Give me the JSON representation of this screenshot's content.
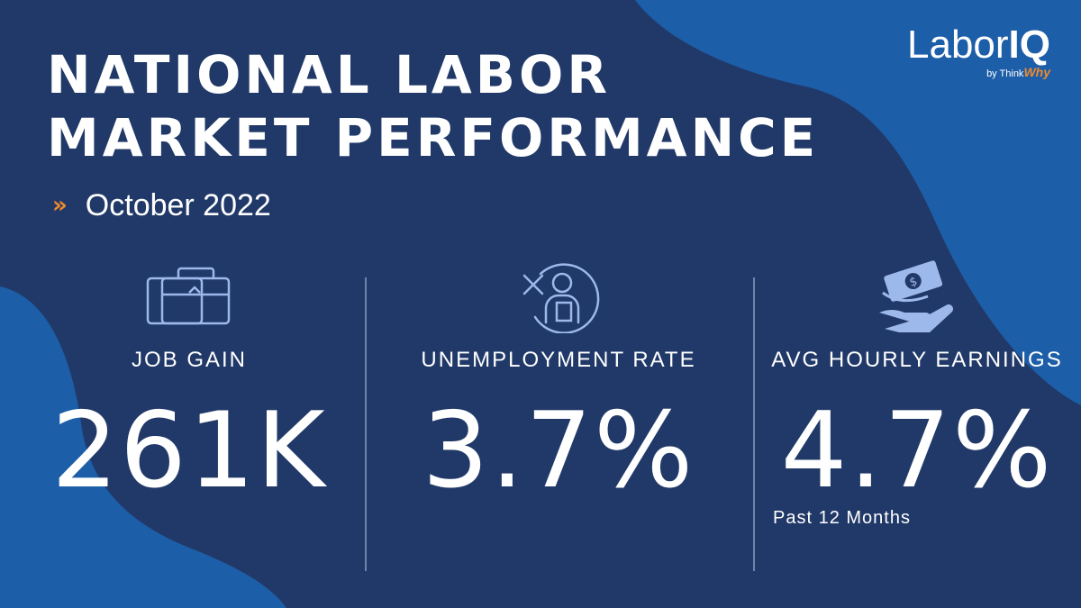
{
  "header": {
    "title_line1": "NATIONAL LABOR",
    "title_line2": "MARKET PERFORMANCE",
    "subtitle_marker": "»",
    "date": "October 2022"
  },
  "logo": {
    "name_light": "Labor",
    "name_bold": "IQ",
    "byline_prefix": "by Think",
    "byline_script": "Why"
  },
  "stats": [
    {
      "label": "JOB GAIN",
      "value": "261K",
      "icon": "briefcase-icon"
    },
    {
      "label": "UNEMPLOYMENT RATE",
      "value": "3.7%",
      "icon": "unemployed-person-icon"
    },
    {
      "label": "AVG HOURLY EARNINGS",
      "value": "4.7%",
      "icon": "money-hand-icon",
      "note": "Past 12 Months"
    }
  ],
  "colors": {
    "background": "#213968",
    "accent_blue": "#1d5ea8",
    "accent_orange": "#f08a2a",
    "icon_stroke": "#9db8ea",
    "text": "#ffffff"
  }
}
